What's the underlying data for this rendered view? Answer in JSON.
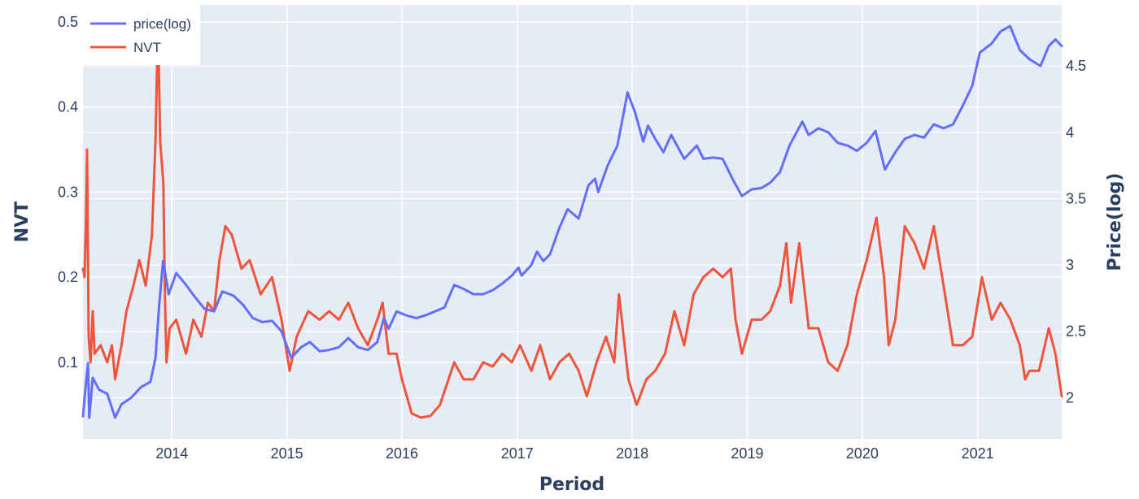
{
  "chart_data": {
    "type": "line",
    "xlabel": "Period",
    "ylabel_left": "NVT",
    "ylabel_right": "Price(log)",
    "x_range": [
      "2013-03-25",
      "2021-09-25"
    ],
    "x_ticks": [
      "2014",
      "2015",
      "2016",
      "2017",
      "2018",
      "2019",
      "2020",
      "2021"
    ],
    "y_left_range": [
      0.01,
      0.52
    ],
    "y_left_ticks": [
      "0.1",
      "0.2",
      "0.3",
      "0.4",
      "0.5"
    ],
    "y_right_range": [
      1.69,
      4.96
    ],
    "y_right_ticks": [
      "2",
      "2.5",
      "3",
      "3.5",
      "4",
      "4.5"
    ],
    "grid": true,
    "legend": {
      "position": "top-left"
    },
    "colors": {
      "plot_bg": "#e5ecf6",
      "price": "#636efa",
      "nvt": "#ef553b",
      "grid": "#ffffff",
      "text": "#2a3f5f"
    },
    "series": [
      {
        "name": "price(log)",
        "axis": "right",
        "color": "#636efa",
        "points": [
          [
            "2013-03-25",
            1.86
          ],
          [
            "2013-04-03",
            2.1
          ],
          [
            "2013-04-10",
            2.26
          ],
          [
            "2013-04-14",
            1.85
          ],
          [
            "2013-04-25",
            2.15
          ],
          [
            "2013-05-15",
            2.06
          ],
          [
            "2013-06-10",
            2.03
          ],
          [
            "2013-07-05",
            1.85
          ],
          [
            "2013-07-25",
            1.95
          ],
          [
            "2013-08-25",
            2.0
          ],
          [
            "2013-09-25",
            2.08
          ],
          [
            "2013-10-25",
            2.12
          ],
          [
            "2013-11-10",
            2.3
          ],
          [
            "2013-11-22",
            2.7
          ],
          [
            "2013-12-04",
            3.03
          ],
          [
            "2013-12-12",
            2.92
          ],
          [
            "2013-12-22",
            2.78
          ],
          [
            "2014-01-15",
            2.94
          ],
          [
            "2014-02-15",
            2.85
          ],
          [
            "2014-03-15",
            2.76
          ],
          [
            "2014-04-15",
            2.67
          ],
          [
            "2014-05-15",
            2.65
          ],
          [
            "2014-06-10",
            2.8
          ],
          [
            "2014-07-15",
            2.77
          ],
          [
            "2014-08-15",
            2.7
          ],
          [
            "2014-09-15",
            2.6
          ],
          [
            "2014-10-15",
            2.57
          ],
          [
            "2014-11-15",
            2.58
          ],
          [
            "2014-12-15",
            2.5
          ],
          [
            "2015-01-15",
            2.3
          ],
          [
            "2015-02-15",
            2.38
          ],
          [
            "2015-03-15",
            2.42
          ],
          [
            "2015-04-15",
            2.35
          ],
          [
            "2015-05-15",
            2.36
          ],
          [
            "2015-06-15",
            2.38
          ],
          [
            "2015-07-15",
            2.45
          ],
          [
            "2015-08-15",
            2.38
          ],
          [
            "2015-09-15",
            2.36
          ],
          [
            "2015-10-15",
            2.42
          ],
          [
            "2015-11-05",
            2.6
          ],
          [
            "2015-11-20",
            2.52
          ],
          [
            "2015-12-15",
            2.65
          ],
          [
            "2016-01-15",
            2.62
          ],
          [
            "2016-02-15",
            2.6
          ],
          [
            "2016-03-15",
            2.62
          ],
          [
            "2016-04-15",
            2.65
          ],
          [
            "2016-05-15",
            2.68
          ],
          [
            "2016-06-15",
            2.85
          ],
          [
            "2016-07-15",
            2.82
          ],
          [
            "2016-08-15",
            2.78
          ],
          [
            "2016-09-15",
            2.78
          ],
          [
            "2016-10-15",
            2.81
          ],
          [
            "2016-11-15",
            2.86
          ],
          [
            "2016-12-15",
            2.92
          ],
          [
            "2017-01-05",
            2.98
          ],
          [
            "2017-01-15",
            2.92
          ],
          [
            "2017-02-15",
            3.0
          ],
          [
            "2017-03-05",
            3.1
          ],
          [
            "2017-03-25",
            3.03
          ],
          [
            "2017-04-15",
            3.08
          ],
          [
            "2017-05-15",
            3.28
          ],
          [
            "2017-06-10",
            3.42
          ],
          [
            "2017-07-15",
            3.35
          ],
          [
            "2017-08-15",
            3.6
          ],
          [
            "2017-09-05",
            3.65
          ],
          [
            "2017-09-15",
            3.55
          ],
          [
            "2017-10-15",
            3.75
          ],
          [
            "2017-11-15",
            3.9
          ],
          [
            "2017-12-17",
            4.3
          ],
          [
            "2018-01-10",
            4.15
          ],
          [
            "2018-02-05",
            3.93
          ],
          [
            "2018-02-20",
            4.05
          ],
          [
            "2018-03-15",
            3.95
          ],
          [
            "2018-04-10",
            3.85
          ],
          [
            "2018-05-05",
            3.98
          ],
          [
            "2018-06-15",
            3.8
          ],
          [
            "2018-07-25",
            3.9
          ],
          [
            "2018-08-15",
            3.8
          ],
          [
            "2018-09-15",
            3.81
          ],
          [
            "2018-10-15",
            3.8
          ],
          [
            "2018-11-15",
            3.65
          ],
          [
            "2018-12-15",
            3.52
          ],
          [
            "2019-01-15",
            3.57
          ],
          [
            "2019-02-15",
            3.58
          ],
          [
            "2019-03-15",
            3.62
          ],
          [
            "2019-04-15",
            3.7
          ],
          [
            "2019-05-15",
            3.9
          ],
          [
            "2019-06-25",
            4.08
          ],
          [
            "2019-07-15",
            3.98
          ],
          [
            "2019-08-15",
            4.03
          ],
          [
            "2019-09-15",
            4.0
          ],
          [
            "2019-10-15",
            3.92
          ],
          [
            "2019-11-15",
            3.9
          ],
          [
            "2019-12-15",
            3.86
          ],
          [
            "2020-01-15",
            3.92
          ],
          [
            "2020-02-12",
            4.01
          ],
          [
            "2020-03-13",
            3.72
          ],
          [
            "2020-04-15",
            3.85
          ],
          [
            "2020-05-15",
            3.95
          ],
          [
            "2020-06-15",
            3.98
          ],
          [
            "2020-07-15",
            3.96
          ],
          [
            "2020-08-15",
            4.06
          ],
          [
            "2020-09-15",
            4.03
          ],
          [
            "2020-10-15",
            4.06
          ],
          [
            "2020-11-15",
            4.2
          ],
          [
            "2020-12-15",
            4.35
          ],
          [
            "2021-01-08",
            4.6
          ],
          [
            "2021-02-15",
            4.67
          ],
          [
            "2021-03-15",
            4.76
          ],
          [
            "2021-04-14",
            4.8
          ],
          [
            "2021-05-15",
            4.62
          ],
          [
            "2021-06-15",
            4.55
          ],
          [
            "2021-07-20",
            4.5
          ],
          [
            "2021-08-15",
            4.65
          ],
          [
            "2021-09-05",
            4.7
          ],
          [
            "2021-09-25",
            4.65
          ]
        ]
      },
      {
        "name": "NVT",
        "axis": "left",
        "color": "#ef553b",
        "points": [
          [
            "2013-03-25",
            0.21
          ],
          [
            "2013-03-30",
            0.2
          ],
          [
            "2013-04-03",
            0.26
          ],
          [
            "2013-04-07",
            0.35
          ],
          [
            "2013-04-12",
            0.13
          ],
          [
            "2013-04-18",
            0.1
          ],
          [
            "2013-04-25",
            0.16
          ],
          [
            "2013-05-01",
            0.11
          ],
          [
            "2013-05-20",
            0.12
          ],
          [
            "2013-06-10",
            0.1
          ],
          [
            "2013-06-25",
            0.12
          ],
          [
            "2013-07-05",
            0.08
          ],
          [
            "2013-07-25",
            0.12
          ],
          [
            "2013-08-10",
            0.16
          ],
          [
            "2013-09-01",
            0.19
          ],
          [
            "2013-09-20",
            0.22
          ],
          [
            "2013-10-10",
            0.19
          ],
          [
            "2013-10-30",
            0.25
          ],
          [
            "2013-11-10",
            0.36
          ],
          [
            "2013-11-18",
            0.5
          ],
          [
            "2013-11-25",
            0.36
          ],
          [
            "2013-12-05",
            0.31
          ],
          [
            "2013-12-10",
            0.18
          ],
          [
            "2013-12-15",
            0.1
          ],
          [
            "2013-12-25",
            0.14
          ],
          [
            "2014-01-15",
            0.15
          ],
          [
            "2014-02-15",
            0.11
          ],
          [
            "2014-03-10",
            0.15
          ],
          [
            "2014-04-05",
            0.13
          ],
          [
            "2014-04-25",
            0.17
          ],
          [
            "2014-05-15",
            0.16
          ],
          [
            "2014-06-01",
            0.22
          ],
          [
            "2014-06-20",
            0.26
          ],
          [
            "2014-07-10",
            0.25
          ],
          [
            "2014-08-10",
            0.21
          ],
          [
            "2014-09-05",
            0.22
          ],
          [
            "2014-10-10",
            0.18
          ],
          [
            "2014-11-15",
            0.2
          ],
          [
            "2014-12-15",
            0.15
          ],
          [
            "2015-01-10",
            0.09
          ],
          [
            "2015-02-01",
            0.13
          ],
          [
            "2015-03-10",
            0.16
          ],
          [
            "2015-04-15",
            0.15
          ],
          [
            "2015-05-15",
            0.16
          ],
          [
            "2015-06-15",
            0.15
          ],
          [
            "2015-07-15",
            0.17
          ],
          [
            "2015-08-15",
            0.14
          ],
          [
            "2015-09-15",
            0.12
          ],
          [
            "2015-10-15",
            0.15
          ],
          [
            "2015-11-01",
            0.17
          ],
          [
            "2015-11-20",
            0.11
          ],
          [
            "2015-12-15",
            0.11
          ],
          [
            "2016-01-01",
            0.08
          ],
          [
            "2016-02-01",
            0.04
          ],
          [
            "2016-03-01",
            0.035
          ],
          [
            "2016-04-01",
            0.037
          ],
          [
            "2016-05-01",
            0.05
          ],
          [
            "2016-06-15",
            0.1
          ],
          [
            "2016-07-15",
            0.08
          ],
          [
            "2016-08-15",
            0.08
          ],
          [
            "2016-09-15",
            0.1
          ],
          [
            "2016-10-15",
            0.095
          ],
          [
            "2016-11-15",
            0.11
          ],
          [
            "2016-12-15",
            0.1
          ],
          [
            "2017-01-10",
            0.12
          ],
          [
            "2017-02-15",
            0.09
          ],
          [
            "2017-03-15",
            0.12
          ],
          [
            "2017-04-15",
            0.08
          ],
          [
            "2017-05-15",
            0.1
          ],
          [
            "2017-06-15",
            0.11
          ],
          [
            "2017-07-15",
            0.09
          ],
          [
            "2017-08-10",
            0.06
          ],
          [
            "2017-09-10",
            0.1
          ],
          [
            "2017-10-10",
            0.13
          ],
          [
            "2017-11-05",
            0.1
          ],
          [
            "2017-11-20",
            0.18
          ],
          [
            "2017-12-20",
            0.08
          ],
          [
            "2018-01-15",
            0.05
          ],
          [
            "2018-02-15",
            0.08
          ],
          [
            "2018-03-15",
            0.09
          ],
          [
            "2018-04-15",
            0.11
          ],
          [
            "2018-05-15",
            0.16
          ],
          [
            "2018-06-15",
            0.12
          ],
          [
            "2018-07-15",
            0.18
          ],
          [
            "2018-08-15",
            0.2
          ],
          [
            "2018-09-15",
            0.21
          ],
          [
            "2018-10-15",
            0.2
          ],
          [
            "2018-11-10",
            0.21
          ],
          [
            "2018-11-25",
            0.15
          ],
          [
            "2018-12-15",
            0.11
          ],
          [
            "2019-01-15",
            0.15
          ],
          [
            "2019-02-15",
            0.15
          ],
          [
            "2019-03-15",
            0.16
          ],
          [
            "2019-04-15",
            0.19
          ],
          [
            "2019-05-05",
            0.24
          ],
          [
            "2019-05-20",
            0.17
          ],
          [
            "2019-06-15",
            0.24
          ],
          [
            "2019-07-15",
            0.14
          ],
          [
            "2019-08-15",
            0.14
          ],
          [
            "2019-09-15",
            0.1
          ],
          [
            "2019-10-15",
            0.09
          ],
          [
            "2019-11-15",
            0.12
          ],
          [
            "2019-12-15",
            0.18
          ],
          [
            "2020-01-15",
            0.22
          ],
          [
            "2020-02-15",
            0.27
          ],
          [
            "2020-03-10",
            0.2
          ],
          [
            "2020-03-25",
            0.12
          ],
          [
            "2020-04-15",
            0.15
          ],
          [
            "2020-05-15",
            0.26
          ],
          [
            "2020-06-15",
            0.24
          ],
          [
            "2020-07-15",
            0.21
          ],
          [
            "2020-08-15",
            0.26
          ],
          [
            "2020-09-15",
            0.19
          ],
          [
            "2020-10-15",
            0.12
          ],
          [
            "2020-11-15",
            0.12
          ],
          [
            "2020-12-15",
            0.13
          ],
          [
            "2021-01-15",
            0.2
          ],
          [
            "2021-02-15",
            0.15
          ],
          [
            "2021-03-15",
            0.17
          ],
          [
            "2021-04-15",
            0.15
          ],
          [
            "2021-05-15",
            0.12
          ],
          [
            "2021-06-01",
            0.08
          ],
          [
            "2021-06-15",
            0.09
          ],
          [
            "2021-07-15",
            0.09
          ],
          [
            "2021-08-15",
            0.14
          ],
          [
            "2021-09-05",
            0.11
          ],
          [
            "2021-09-25",
            0.06
          ]
        ]
      }
    ]
  }
}
